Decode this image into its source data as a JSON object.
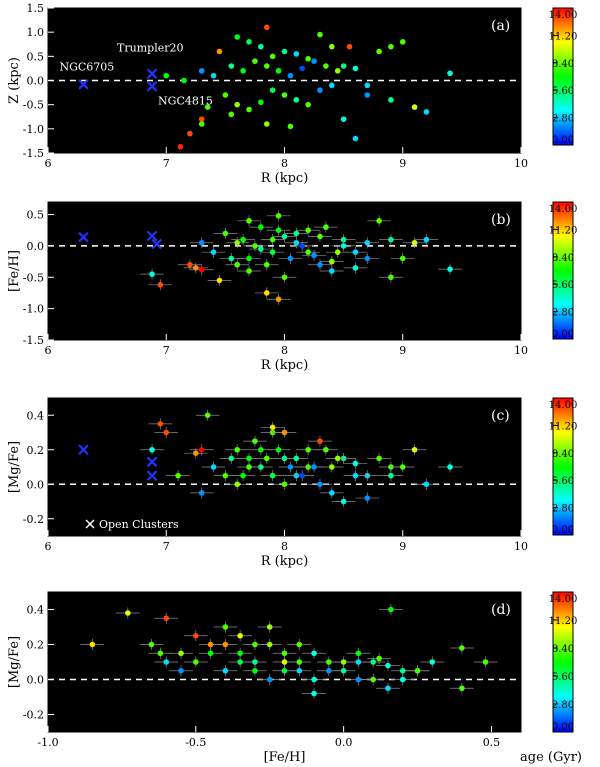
{
  "chart_data": [
    {
      "type": "scatter",
      "panel_label": "(a)",
      "xlabel": "R (kpc)",
      "ylabel": "Z (kpc)",
      "xlim": [
        6,
        10
      ],
      "ylim": [
        -1.5,
        1.5
      ],
      "xticks": [
        6,
        7,
        8,
        9,
        10
      ],
      "yticks": [
        -1.5,
        -1.0,
        -0.5,
        0.0,
        0.5,
        1.0,
        1.5
      ],
      "xticklabels": [
        "6",
        "7",
        "8",
        "9",
        "10"
      ],
      "yticklabels": [
        "-1.5",
        "-1.0",
        "-0.5",
        "0.0",
        "0.5",
        "1.0",
        "1.5"
      ],
      "reference_line": 0,
      "background": "#000000",
      "colorbar": {
        "label": "age (Gyr)",
        "ticks": [
          "0.00",
          "2.80",
          "5.60",
          "8.40",
          "11.20",
          "14.00"
        ],
        "range": [
          0,
          14
        ],
        "colors": [
          "#0000ff",
          "#00ffff",
          "#00ff00",
          "#ffff00",
          "#ff0000"
        ]
      },
      "open_clusters": [
        {
          "name": "NGC6705",
          "x": 6.3,
          "y": -0.08
        },
        {
          "name": "Trumpler20",
          "x": 6.88,
          "y": 0.14
        },
        {
          "name": "NGC4815",
          "x": 6.88,
          "y": -0.12
        }
      ],
      "points": [
        [
          7.2,
          -1.1,
          13
        ],
        [
          7.12,
          -1.37,
          13.5
        ],
        [
          7.3,
          -0.8,
          13
        ],
        [
          7.45,
          0.6,
          12
        ],
        [
          7.85,
          1.1,
          13
        ],
        [
          8.55,
          0.7,
          13
        ],
        [
          7.6,
          0.9,
          7
        ],
        [
          7.7,
          0.8,
          6
        ],
        [
          7.8,
          0.7,
          5
        ],
        [
          7.9,
          0.5,
          8
        ],
        [
          8.0,
          0.6,
          5
        ],
        [
          8.1,
          0.55,
          3
        ],
        [
          8.2,
          0.45,
          8
        ],
        [
          8.3,
          0.95,
          8
        ],
        [
          8.4,
          0.7,
          9
        ],
        [
          8.5,
          0.3,
          5
        ],
        [
          8.6,
          0.25,
          4
        ],
        [
          8.7,
          -0.1,
          3
        ],
        [
          8.8,
          0.6,
          8
        ],
        [
          8.9,
          0.7,
          8
        ],
        [
          9.0,
          0.8,
          8
        ],
        [
          9.1,
          -0.55,
          10
        ],
        [
          9.2,
          -0.65,
          3
        ],
        [
          9.4,
          0.15,
          4
        ],
        [
          7.5,
          -0.3,
          8
        ],
        [
          7.6,
          -0.5,
          9
        ],
        [
          7.7,
          -0.6,
          8
        ],
        [
          7.8,
          -0.45,
          7
        ],
        [
          7.9,
          -0.2,
          6
        ],
        [
          8.0,
          -0.3,
          8
        ],
        [
          8.1,
          -0.4,
          5
        ],
        [
          8.2,
          -0.5,
          8
        ],
        [
          8.3,
          -0.2,
          2
        ],
        [
          8.4,
          -0.1,
          3
        ],
        [
          8.5,
          -0.8,
          4
        ],
        [
          8.6,
          -1.2,
          3
        ],
        [
          8.7,
          -0.3,
          2
        ],
        [
          8.9,
          -0.4,
          5
        ],
        [
          7.3,
          0.2,
          2
        ],
        [
          7.4,
          0.1,
          3
        ],
        [
          7.55,
          0.3,
          5
        ],
        [
          7.65,
          0.2,
          7
        ],
        [
          7.75,
          0.4,
          8
        ],
        [
          7.85,
          0.3,
          8
        ],
        [
          7.95,
          0.2,
          7
        ],
        [
          8.05,
          0.1,
          2
        ],
        [
          8.15,
          0.25,
          1
        ],
        [
          8.25,
          0.4,
          2
        ],
        [
          8.35,
          0.3,
          8
        ],
        [
          8.45,
          0.2,
          9
        ],
        [
          7.35,
          -0.55,
          8
        ],
        [
          7.55,
          -0.7,
          8
        ],
        [
          7.85,
          -0.9,
          9
        ],
        [
          8.05,
          -0.95,
          8
        ],
        [
          7.15,
          0.0,
          7
        ],
        [
          7.0,
          0.1,
          7
        ],
        [
          7.3,
          -0.9,
          8
        ]
      ]
    },
    {
      "type": "scatter",
      "panel_label": "(b)",
      "xlabel": "R (kpc)",
      "ylabel": "[Fe/H]",
      "xlim": [
        6,
        10
      ],
      "ylim": [
        -1.5,
        0.7
      ],
      "xticks": [
        6,
        7,
        8,
        9,
        10
      ],
      "yticks": [
        -1.5,
        -1.0,
        -0.5,
        0.0,
        0.5
      ],
      "xticklabels": [
        "6",
        "7",
        "8",
        "9",
        "10"
      ],
      "yticklabels": [
        "-1.5",
        "-1.0",
        "-0.5",
        "0.0",
        "0.5"
      ],
      "reference_line": 0,
      "background": "#000000",
      "colorbar": {
        "label": "age (Gyr)",
        "ticks": [
          "0.00",
          "2.80",
          "5.60",
          "8.40",
          "11.20",
          "14.00"
        ],
        "range": [
          0,
          14
        ],
        "colors": [
          "#0000ff",
          "#00ffff",
          "#00ff00",
          "#ffff00",
          "#ff0000"
        ]
      },
      "open_clusters": [
        {
          "name": "NGC6705",
          "x": 6.3,
          "y": 0.14
        },
        {
          "name": "Trumpler20",
          "x": 6.88,
          "y": 0.16
        },
        {
          "name": "NGC4815",
          "x": 6.92,
          "y": 0.03
        }
      ],
      "points": [
        [
          6.88,
          -0.45,
          4
        ],
        [
          6.95,
          -0.62,
          13
        ],
        [
          7.2,
          -0.3,
          13
        ],
        [
          7.25,
          -0.35,
          12
        ],
        [
          7.3,
          -0.38,
          14
        ],
        [
          7.45,
          -0.55,
          11
        ],
        [
          7.6,
          -0.3,
          8
        ],
        [
          7.7,
          -0.2,
          7
        ],
        [
          7.8,
          -0.05,
          5
        ],
        [
          7.9,
          0.1,
          8
        ],
        [
          8.0,
          0.15,
          5
        ],
        [
          8.1,
          0.05,
          3
        ],
        [
          8.2,
          -0.1,
          8
        ],
        [
          8.3,
          0.15,
          8
        ],
        [
          8.4,
          -0.25,
          9
        ],
        [
          8.5,
          0.1,
          5
        ],
        [
          8.6,
          -0.35,
          4
        ],
        [
          8.7,
          0.05,
          3
        ],
        [
          8.8,
          0.4,
          8
        ],
        [
          8.9,
          -0.5,
          8
        ],
        [
          9.0,
          -0.2,
          8
        ],
        [
          9.1,
          0.05,
          10
        ],
        [
          9.2,
          0.1,
          3
        ],
        [
          9.4,
          -0.37,
          4
        ],
        [
          7.5,
          0.2,
          8
        ],
        [
          7.6,
          0.05,
          9
        ],
        [
          7.7,
          -0.4,
          8
        ],
        [
          7.8,
          0.3,
          7
        ],
        [
          7.9,
          -0.1,
          6
        ],
        [
          8.0,
          -0.5,
          8
        ],
        [
          8.1,
          0.2,
          5
        ],
        [
          8.2,
          0.25,
          8
        ],
        [
          8.3,
          -0.3,
          2
        ],
        [
          8.4,
          -0.4,
          3
        ],
        [
          8.5,
          0.0,
          4
        ],
        [
          8.6,
          -0.1,
          3
        ],
        [
          8.7,
          -0.2,
          2
        ],
        [
          8.9,
          0.1,
          5
        ],
        [
          7.3,
          0.05,
          2
        ],
        [
          7.4,
          -0.1,
          3
        ],
        [
          7.55,
          -0.2,
          5
        ],
        [
          7.65,
          0.1,
          7
        ],
        [
          7.75,
          0.0,
          8
        ],
        [
          7.85,
          -0.3,
          8
        ],
        [
          7.95,
          0.25,
          7
        ],
        [
          8.05,
          -0.2,
          2
        ],
        [
          8.15,
          0.0,
          1
        ],
        [
          8.25,
          -0.15,
          2
        ],
        [
          8.35,
          0.3,
          8
        ],
        [
          8.45,
          -0.1,
          9
        ],
        [
          7.85,
          -0.75,
          11
        ],
        [
          7.95,
          -0.85,
          12
        ],
        [
          7.7,
          0.4,
          8
        ],
        [
          7.95,
          0.48,
          8
        ]
      ]
    },
    {
      "type": "scatter",
      "panel_label": "(c)",
      "xlabel": "R (kpc)",
      "ylabel": "[Mg/Fe]",
      "xlim": [
        6,
        10
      ],
      "ylim": [
        -0.3,
        0.5
      ],
      "xticks": [
        6,
        7,
        8,
        9,
        10
      ],
      "yticks": [
        -0.2,
        0.0,
        0.2,
        0.4
      ],
      "xticklabels": [
        "6",
        "7",
        "8",
        "9",
        "10"
      ],
      "yticklabels": [
        "-0.2",
        "0.0",
        "0.2",
        "0.4"
      ],
      "reference_line": 0,
      "background": "#000000",
      "legend_text": "Open Clusters",
      "colorbar": {
        "label": "age (Gyr)",
        "ticks": [
          "0.00",
          "2.80",
          "5.60",
          "8.40",
          "11.20",
          "14.00"
        ],
        "range": [
          0,
          14
        ],
        "colors": [
          "#0000ff",
          "#00ffff",
          "#00ff00",
          "#ffff00",
          "#ff0000"
        ]
      },
      "open_clusters": [
        {
          "name": "NGC6705",
          "x": 6.3,
          "y": 0.2
        },
        {
          "name": "Trumpler20",
          "x": 6.88,
          "y": 0.13
        },
        {
          "name": "NGC4815",
          "x": 6.88,
          "y": 0.05
        }
      ],
      "points": [
        [
          6.88,
          0.2,
          4
        ],
        [
          6.95,
          0.35,
          13
        ],
        [
          7.0,
          0.3,
          13
        ],
        [
          7.25,
          0.18,
          12
        ],
        [
          7.3,
          0.2,
          14
        ],
        [
          7.35,
          0.4,
          8
        ],
        [
          7.6,
          0.2,
          8
        ],
        [
          7.7,
          0.15,
          7
        ],
        [
          7.8,
          0.1,
          5
        ],
        [
          7.9,
          0.3,
          8
        ],
        [
          8.0,
          0.15,
          5
        ],
        [
          8.1,
          0.05,
          3
        ],
        [
          8.2,
          0.1,
          8
        ],
        [
          8.3,
          0.25,
          13
        ],
        [
          8.4,
          0.1,
          9
        ],
        [
          8.5,
          0.15,
          5
        ],
        [
          8.6,
          0.12,
          4
        ],
        [
          8.7,
          0.05,
          3
        ],
        [
          8.8,
          0.15,
          8
        ],
        [
          8.9,
          0.1,
          8
        ],
        [
          9.0,
          0.1,
          8
        ],
        [
          9.1,
          0.2,
          10
        ],
        [
          9.2,
          0.0,
          3
        ],
        [
          9.4,
          0.1,
          4
        ],
        [
          7.5,
          0.05,
          8
        ],
        [
          7.6,
          0.0,
          9
        ],
        [
          7.7,
          0.1,
          8
        ],
        [
          7.8,
          0.2,
          7
        ],
        [
          7.9,
          0.05,
          6
        ],
        [
          8.0,
          0.0,
          8
        ],
        [
          8.1,
          0.15,
          5
        ],
        [
          8.2,
          0.2,
          8
        ],
        [
          8.3,
          0.0,
          2
        ],
        [
          8.4,
          -0.05,
          3
        ],
        [
          8.5,
          -0.1,
          4
        ],
        [
          8.6,
          0.05,
          3
        ],
        [
          8.7,
          -0.08,
          2
        ],
        [
          8.9,
          0.05,
          5
        ],
        [
          7.3,
          -0.05,
          2
        ],
        [
          7.4,
          0.1,
          3
        ],
        [
          7.55,
          0.15,
          5
        ],
        [
          7.65,
          0.05,
          7
        ],
        [
          7.75,
          0.25,
          8
        ],
        [
          7.85,
          0.15,
          8
        ],
        [
          7.95,
          0.2,
          7
        ],
        [
          8.05,
          0.1,
          2
        ],
        [
          8.15,
          0.05,
          1
        ],
        [
          8.25,
          0.1,
          2
        ],
        [
          8.35,
          0.2,
          8
        ],
        [
          8.45,
          0.15,
          9
        ],
        [
          7.9,
          0.33,
          11
        ],
        [
          8.0,
          0.3,
          12
        ],
        [
          7.1,
          0.05,
          8
        ]
      ]
    },
    {
      "type": "scatter",
      "panel_label": "(d)",
      "xlabel": "[Fe/H]",
      "ylabel": "[Mg/Fe]",
      "xlim": [
        -1.0,
        0.6
      ],
      "ylim": [
        -0.3,
        0.5
      ],
      "xticks": [
        -1.0,
        -0.5,
        0.0,
        0.5
      ],
      "yticks": [
        -0.2,
        0.0,
        0.2,
        0.4
      ],
      "xticklabels": [
        "-1.0",
        "-0.5",
        "0.0",
        "0.5"
      ],
      "yticklabels": [
        "-0.2",
        "0.0",
        "0.2",
        "0.4"
      ],
      "reference_line": 0,
      "background": "#000000",
      "colorbar": {
        "label": "age (Gyr)",
        "ticks": [
          "0.00",
          "2.80",
          "5.60",
          "8.40",
          "11.20",
          "14.00"
        ],
        "range": [
          0,
          14
        ],
        "colors": [
          "#0000ff",
          "#00ffff",
          "#00ff00",
          "#ffff00",
          "#ff0000"
        ]
      },
      "open_clusters": [],
      "points": [
        [
          -0.85,
          0.2,
          11
        ],
        [
          -0.73,
          0.38,
          10
        ],
        [
          -0.65,
          0.2,
          8
        ],
        [
          -0.6,
          0.35,
          13
        ],
        [
          -0.55,
          0.15,
          9
        ],
        [
          -0.5,
          0.25,
          13
        ],
        [
          -0.45,
          0.2,
          12
        ],
        [
          -0.4,
          0.3,
          8
        ],
        [
          -0.35,
          0.15,
          7
        ],
        [
          -0.3,
          0.1,
          5
        ],
        [
          -0.25,
          0.2,
          9
        ],
        [
          -0.2,
          0.05,
          6
        ],
        [
          -0.15,
          0.1,
          8
        ],
        [
          -0.1,
          0.15,
          4
        ],
        [
          -0.05,
          0.1,
          8
        ],
        [
          0.0,
          0.05,
          5
        ],
        [
          0.05,
          0.1,
          3
        ],
        [
          0.1,
          0.0,
          8
        ],
        [
          0.15,
          0.08,
          4
        ],
        [
          0.2,
          0.05,
          5
        ],
        [
          0.25,
          0.05,
          2
        ],
        [
          0.3,
          0.1,
          4
        ],
        [
          0.4,
          0.18,
          8
        ],
        [
          0.48,
          0.1,
          8
        ],
        [
          0.4,
          -0.05,
          8
        ],
        [
          0.16,
          0.4,
          7
        ],
        [
          -0.6,
          0.1,
          3
        ],
        [
          -0.55,
          0.05,
          2
        ],
        [
          -0.5,
          0.1,
          8
        ],
        [
          -0.45,
          0.15,
          7
        ],
        [
          -0.4,
          0.05,
          3
        ],
        [
          -0.35,
          0.25,
          10
        ],
        [
          -0.3,
          0.2,
          8
        ],
        [
          -0.25,
          0.0,
          2
        ],
        [
          -0.2,
          0.15,
          8
        ],
        [
          -0.15,
          0.05,
          3
        ],
        [
          -0.1,
          0.0,
          4
        ],
        [
          -0.05,
          0.05,
          2
        ],
        [
          0.0,
          0.1,
          9
        ],
        [
          0.05,
          0.0,
          2
        ],
        [
          0.1,
          0.1,
          5
        ],
        [
          0.15,
          -0.05,
          3
        ],
        [
          0.2,
          0.0,
          4
        ],
        [
          0.25,
          0.05,
          8
        ],
        [
          -0.35,
          0.1,
          6
        ],
        [
          -0.3,
          0.05,
          7
        ],
        [
          -0.2,
          0.1,
          10
        ],
        [
          -0.15,
          0.2,
          8
        ],
        [
          -0.1,
          -0.08,
          4
        ],
        [
          0.05,
          0.15,
          7
        ],
        [
          -0.62,
          0.15,
          8
        ],
        [
          -0.4,
          0.2,
          12
        ],
        [
          -0.25,
          0.3,
          9
        ],
        [
          0.12,
          0.12,
          8
        ]
      ]
    }
  ]
}
